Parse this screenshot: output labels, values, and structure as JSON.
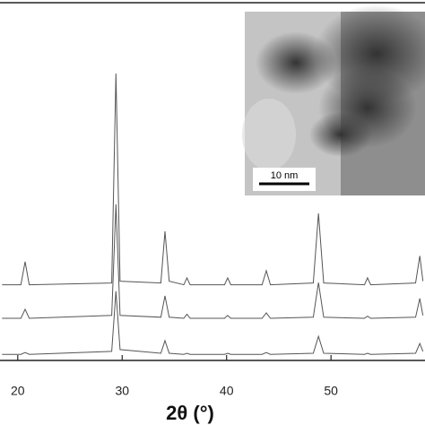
{
  "chart_data": {
    "type": "line",
    "x_label": "2θ (°)",
    "scale_bar_label": "10 nm",
    "xlim": [
      18.3,
      59
    ],
    "ylim": [
      0,
      100
    ],
    "xticks": [
      20,
      30,
      40,
      50
    ],
    "x": [
      18.5,
      20.3,
      20.7,
      21.1,
      29.0,
      29.4,
      29.8,
      33.7,
      34.1,
      34.5,
      35.9,
      36.2,
      36.5,
      39.8,
      40.1,
      40.4,
      43.4,
      43.8,
      44.2,
      48.3,
      48.8,
      49.3,
      53.2,
      53.5,
      53.8,
      58.1,
      58.5,
      58.8
    ],
    "series": [
      {
        "color": "#555555",
        "values": [
          21,
          21,
          27.4,
          21,
          21.5,
          79.6,
          22,
          21.5,
          35.8,
          22,
          21,
          22.9,
          21,
          21,
          22.9,
          21,
          21,
          24.9,
          21,
          21.5,
          40.8,
          21.5,
          21,
          22.9,
          21,
          21.5,
          29,
          22
        ]
      },
      {
        "color": "#555555",
        "values": [
          11.7,
          11.7,
          14.2,
          11.7,
          12.5,
          43.3,
          12.5,
          12,
          17.9,
          12,
          11.7,
          12.8,
          11.7,
          11.7,
          12.5,
          11.7,
          11.7,
          13.2,
          11.7,
          12,
          21.6,
          12,
          11.7,
          12.3,
          11.7,
          12,
          17.2,
          12.5
        ]
      },
      {
        "color": "#555555",
        "values": [
          1.7,
          1.7,
          2.2,
          1.7,
          2.5,
          19.2,
          3,
          2,
          5.5,
          2,
          1.7,
          2,
          1.7,
          1.7,
          2,
          1.7,
          1.7,
          2.2,
          1.7,
          2,
          6.7,
          2,
          1.7,
          2,
          1.7,
          2,
          4.7,
          2.5
        ]
      }
    ]
  }
}
